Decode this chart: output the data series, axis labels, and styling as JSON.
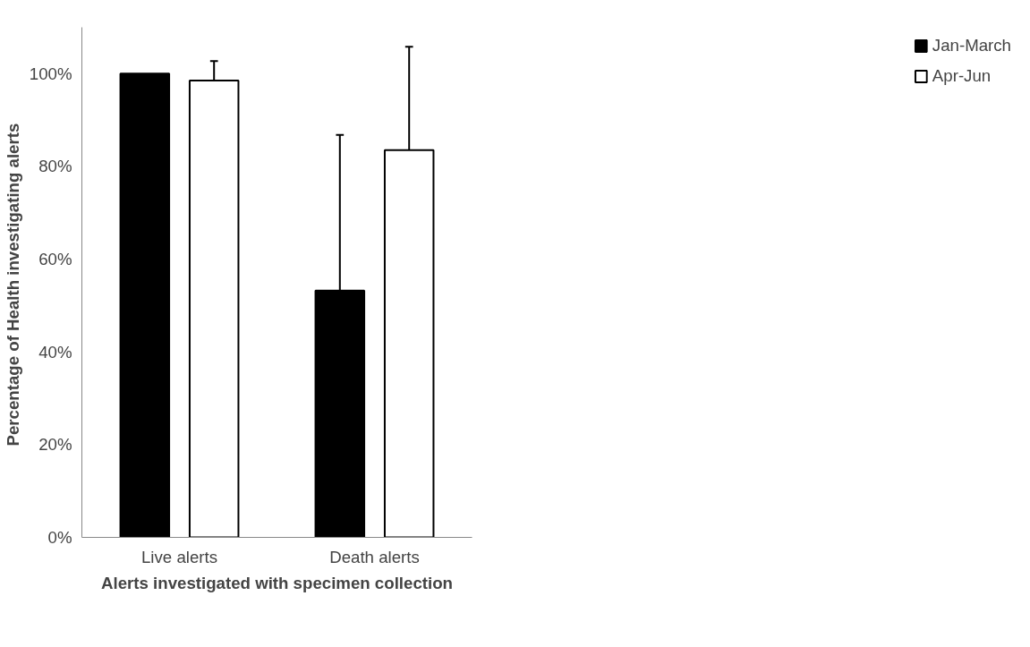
{
  "chart_data": {
    "type": "bar",
    "xlabel": "Alerts investigated with specimen collection",
    "ylabel": "Percentage of Health  investigating alerts",
    "categories": [
      "Live alerts",
      "Death alerts"
    ],
    "series": [
      {
        "name": "Jan-March",
        "color": "#000000",
        "values": [
          100,
          53.2
        ],
        "errors": [
          null,
          [
            53.2,
            86.8
          ]
        ]
      },
      {
        "name": "Apr-Jun",
        "color": "#ffffff",
        "values": [
          98.5,
          83.5
        ],
        "errors": [
          [
            98.5,
            102.7
          ],
          [
            83.5,
            105.8
          ]
        ]
      }
    ],
    "ylim": [
      0,
      110
    ],
    "yticks": [
      {
        "value": 0,
        "label": "0%"
      },
      {
        "value": 20,
        "label": "20%"
      },
      {
        "value": 40,
        "label": "40%"
      },
      {
        "value": 60,
        "label": "60%"
      },
      {
        "value": 80,
        "label": "80%"
      },
      {
        "value": 100,
        "label": "100%"
      }
    ],
    "grid": false,
    "legend": "right"
  }
}
